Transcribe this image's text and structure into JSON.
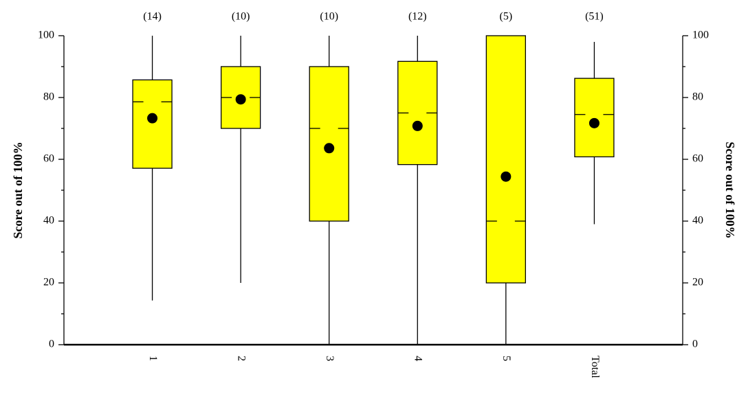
{
  "chart_data": {
    "type": "box",
    "ylabel": "Score out of 100%",
    "categories": [
      "1",
      "2",
      "3",
      "4",
      "5",
      "Total"
    ],
    "count_labels": [
      "(14)",
      "(10)",
      "(10)",
      "(12)",
      "(5)",
      "(51)"
    ],
    "low": [
      14.3,
      20,
      0,
      0,
      0,
      39
    ],
    "q1": [
      57.1,
      70,
      40,
      58.3,
      20,
      60.8
    ],
    "median": [
      78.6,
      80,
      70,
      75,
      40,
      74.5
    ],
    "q3": [
      85.7,
      90,
      90,
      91.7,
      100,
      86.2
    ],
    "high": [
      100,
      100,
      100,
      100,
      100,
      98
    ],
    "mean": [
      73.3,
      79.4,
      63.6,
      70.8,
      54.4,
      71.7
    ],
    "color": "#ffff00",
    "ylim": [
      0,
      100
    ],
    "yticks": [
      0,
      20,
      40,
      60,
      80,
      100
    ],
    "yminorticks": [
      10,
      30,
      50,
      70,
      90
    ]
  }
}
